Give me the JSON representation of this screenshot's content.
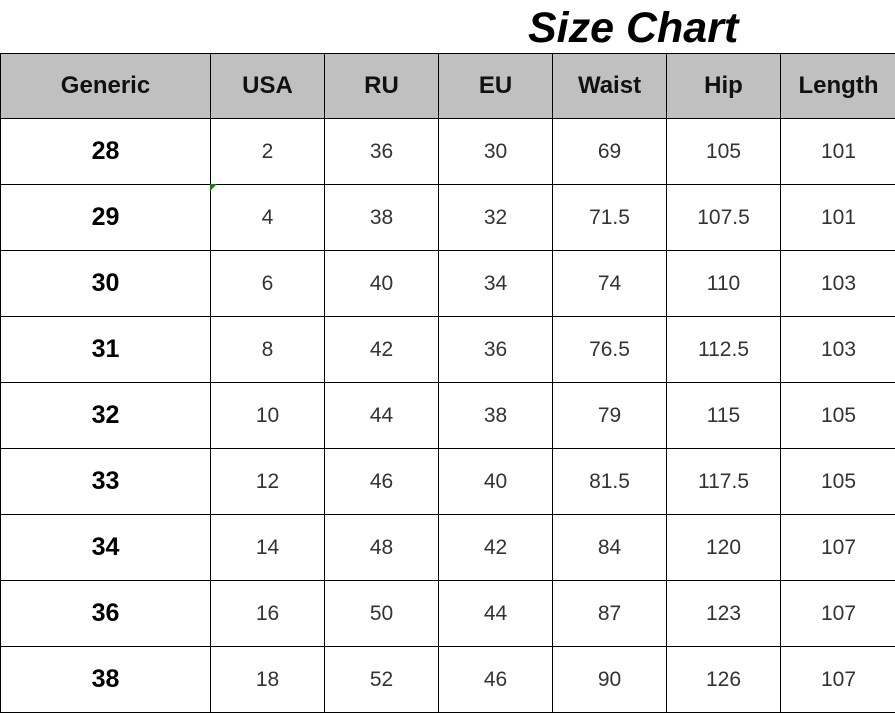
{
  "title": "Size Chart",
  "columns": [
    "Generic",
    "USA",
    "RU",
    "EU",
    "Waist",
    "Hip",
    "Length"
  ],
  "rows": [
    [
      "28",
      "2",
      "36",
      "30",
      "69",
      "105",
      "101"
    ],
    [
      "29",
      "4",
      "38",
      "32",
      "71.5",
      "107.5",
      "101"
    ],
    [
      "30",
      "6",
      "40",
      "34",
      "74",
      "110",
      "103"
    ],
    [
      "31",
      "8",
      "42",
      "36",
      "76.5",
      "112.5",
      "103"
    ],
    [
      "32",
      "10",
      "44",
      "38",
      "79",
      "115",
      "105"
    ],
    [
      "33",
      "12",
      "46",
      "40",
      "81.5",
      "117.5",
      "105"
    ],
    [
      "34",
      "14",
      "48",
      "42",
      "84",
      "120",
      "107"
    ],
    [
      "36",
      "16",
      "50",
      "44",
      "87",
      "123",
      "107"
    ],
    [
      "38",
      "18",
      "52",
      "46",
      "90",
      "126",
      "107"
    ]
  ],
  "colors": {
    "header_bg": "#c0c0c0",
    "border": "#000000",
    "cell_marker": "#1a7a1a"
  }
}
